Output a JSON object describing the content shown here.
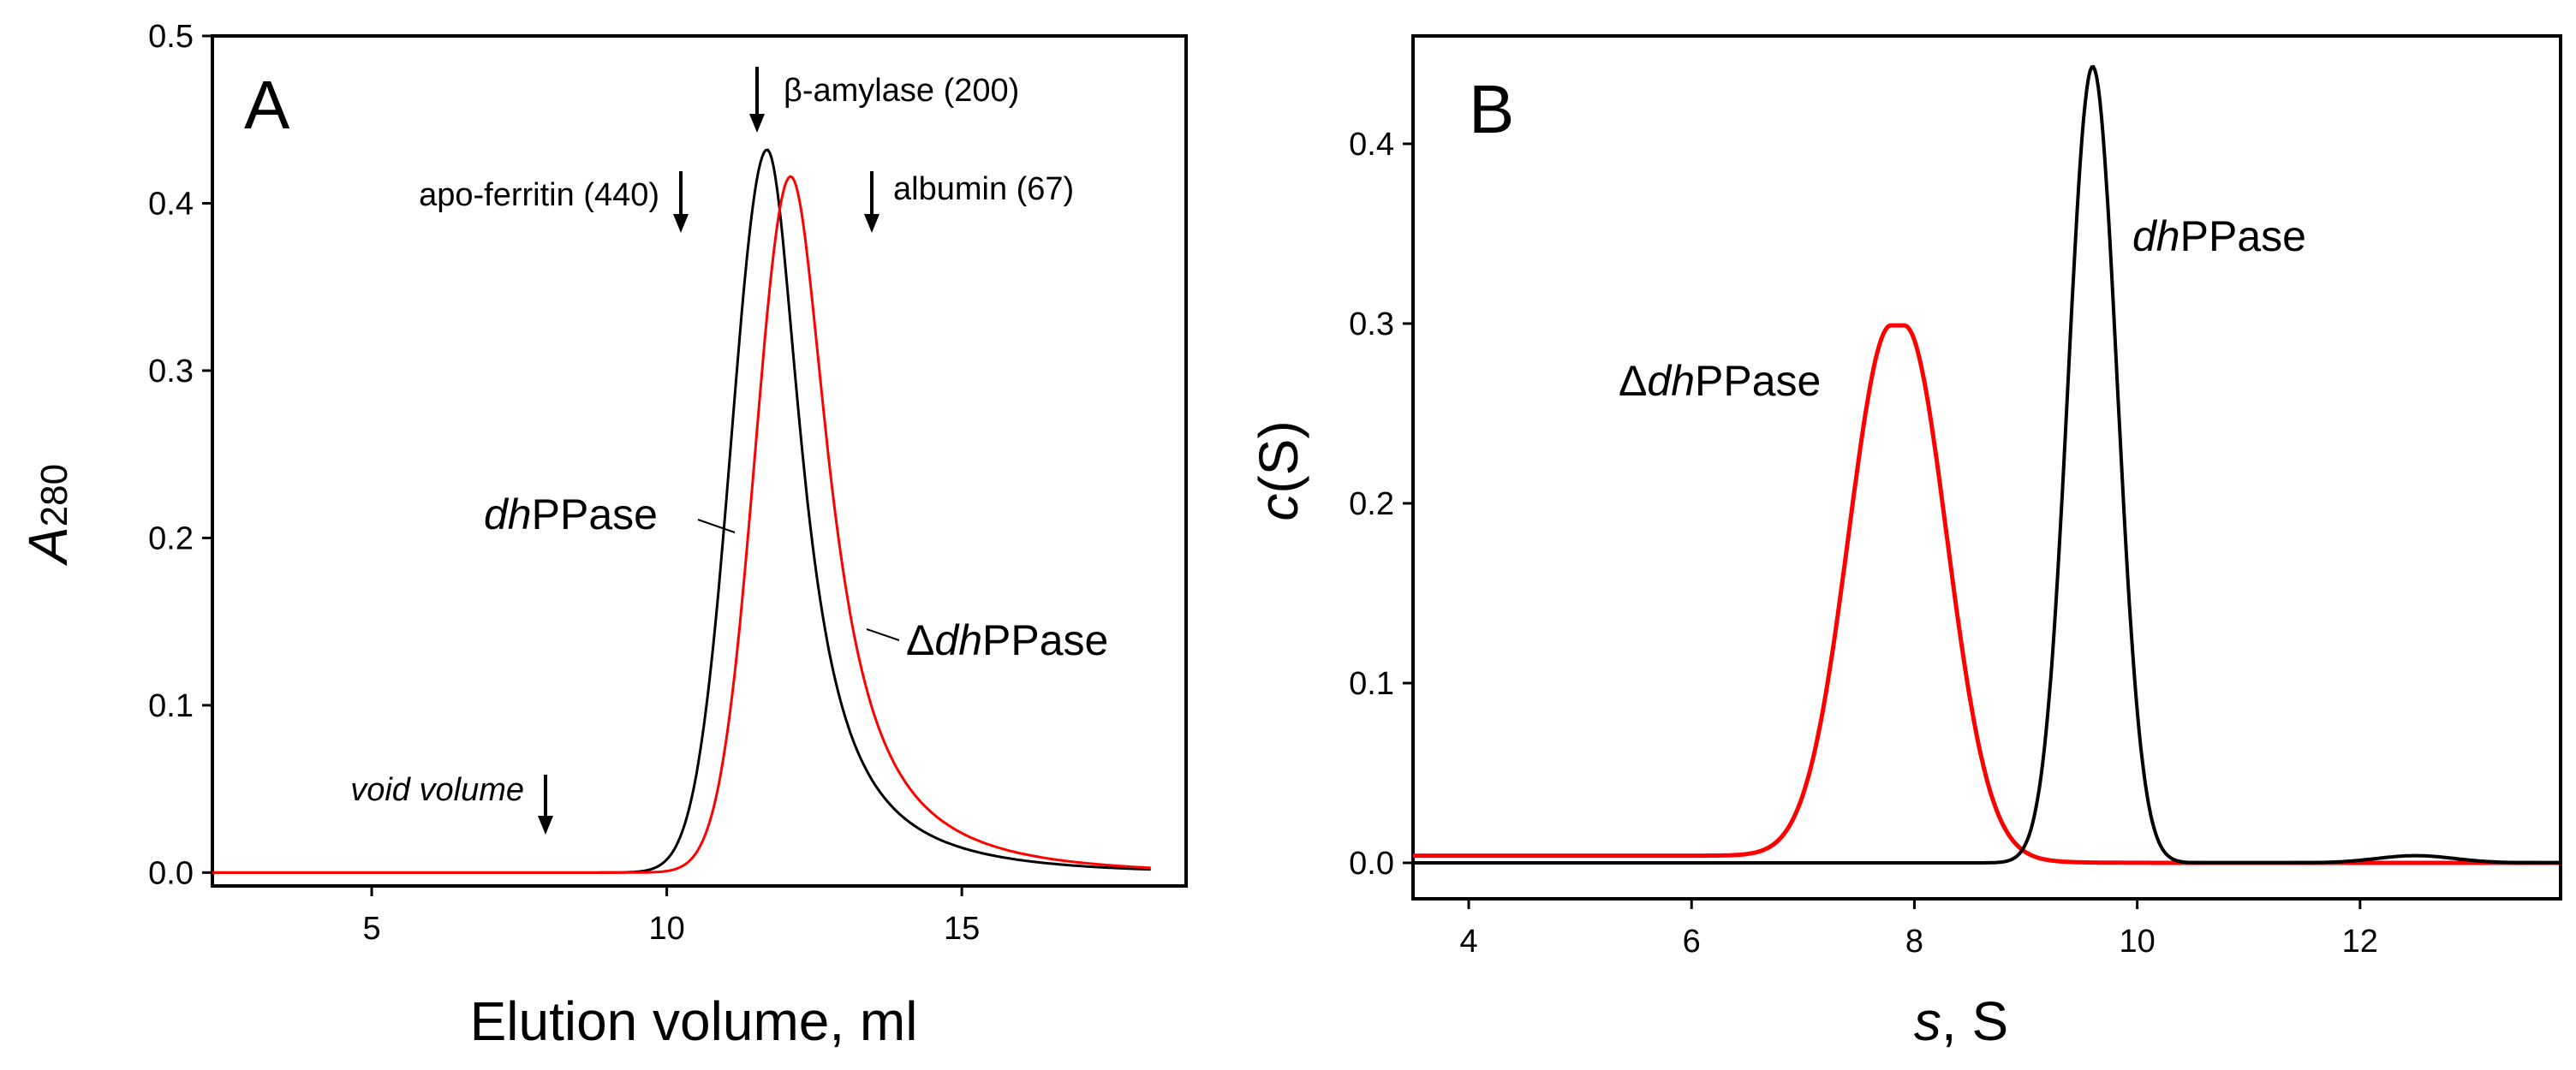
{
  "colors": {
    "black_series": "#000000",
    "red_series": "#ff0000"
  },
  "chart_data": [
    {
      "panel": "A",
      "type": "line",
      "xlabel": "Elution volume, ml",
      "ylabel_main": "A",
      "ylabel_sub": "280",
      "xlim": [
        2.3,
        18.8
      ],
      "ylim": [
        -0.008,
        0.5
      ],
      "xticks": [
        5,
        10,
        15
      ],
      "xtick_labels": [
        "5",
        "10",
        "15"
      ],
      "yticks": [
        0.0,
        0.1,
        0.2,
        0.3,
        0.4,
        0.5
      ],
      "ytick_labels": [
        "0.0",
        "0.1",
        "0.2",
        "0.3",
        "0.4",
        "0.5"
      ],
      "series": [
        {
          "name": "dhPPase",
          "label_italic": "dh",
          "label_rest": "PPase",
          "color": "#000000",
          "peak_x": 11.7,
          "peak_y": 0.432,
          "sigma_left": 0.6,
          "tail_right": 0.9,
          "x_range": [
            2.3,
            18.2
          ]
        },
        {
          "name": "ΔdhPPase",
          "label_prefix": "Δ",
          "label_italic": "dh",
          "label_rest": "PPase",
          "color": "#ff0000",
          "peak_x": 12.1,
          "peak_y": 0.416,
          "sigma_left": 0.6,
          "tail_right": 1.0,
          "x_range": [
            2.3,
            18.2
          ]
        }
      ],
      "markers": [
        {
          "label": "void volume",
          "italic": true,
          "x": 7.8
        },
        {
          "label": "apo-ferritin (440)",
          "italic": false,
          "x": 10.2
        },
        {
          "label": "β-amylase (200)",
          "italic": false,
          "x": 11.5
        },
        {
          "label": "albumin (67)",
          "italic": false,
          "x": 13.4
        }
      ]
    },
    {
      "panel": "B",
      "type": "line",
      "xlabel_italic": "s",
      "xlabel_rest": ", S",
      "ylabel_prefix": "c",
      "ylabel_rest": "(S)",
      "xlim": [
        3.5,
        13.8
      ],
      "ylim": [
        -0.02,
        0.46
      ],
      "xticks": [
        4,
        6,
        8,
        10,
        12
      ],
      "xtick_labels": [
        "4",
        "6",
        "8",
        "10",
        "12"
      ],
      "yticks": [
        0.0,
        0.1,
        0.2,
        0.3,
        0.4
      ],
      "ytick_labels": [
        "0.0",
        "0.1",
        "0.2",
        "0.3",
        "0.4"
      ],
      "series": [
        {
          "name": "ΔdhPPase",
          "label_prefix": "Δ",
          "label_italic": "dh",
          "label_rest": "PPase",
          "color": "#ff0000",
          "peak_x": 7.85,
          "peak_y": 0.295,
          "sigma": 0.38,
          "baseline": 0.004,
          "flat_top": 0.12
        },
        {
          "name": "dhPPase",
          "label_italic": "dh",
          "label_rest": "PPase",
          "color": "#000000",
          "peak_x": 9.6,
          "peak_y": 0.443,
          "sigma": 0.22,
          "baseline": 0.0
        }
      ]
    }
  ]
}
